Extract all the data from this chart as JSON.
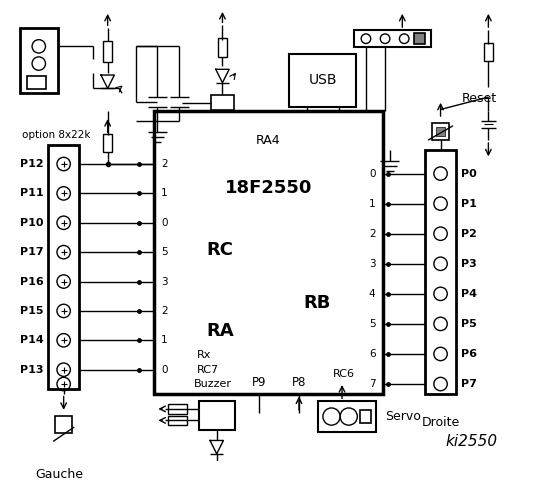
{
  "bg_color": "#ffffff",
  "line_color": "#000000",
  "title": "ki2550",
  "ic_label": "18F2550",
  "ic_sublabel": "RA4",
  "left_connector_pins": [
    "P12",
    "P11",
    "P10",
    "P17",
    "P16",
    "P15",
    "P14",
    "P13"
  ],
  "left_rc_pins": [
    "2",
    "1",
    "0",
    "5",
    "3",
    "2",
    "1",
    "0"
  ],
  "right_connector_pins": [
    "P0",
    "P1",
    "P2",
    "P3",
    "P4",
    "P5",
    "P6",
    "P7"
  ],
  "right_rb_pins": [
    "0",
    "1",
    "2",
    "3",
    "4",
    "5",
    "6",
    "7"
  ],
  "option_label": "option 8x22k",
  "reset_label": "Reset",
  "usb_label": "USB",
  "gauche_label": "Gauche",
  "droite_label": "Droite",
  "buzzer_label": "Buzzer",
  "servo_label": "Servo",
  "p9_label": "P9",
  "p8_label": "P8",
  "rc_label": "RC",
  "ra_label": "RA",
  "rb_label": "RB",
  "rx_label": "Rx",
  "rc7_label": "RC7",
  "rc6_label": "RC6"
}
